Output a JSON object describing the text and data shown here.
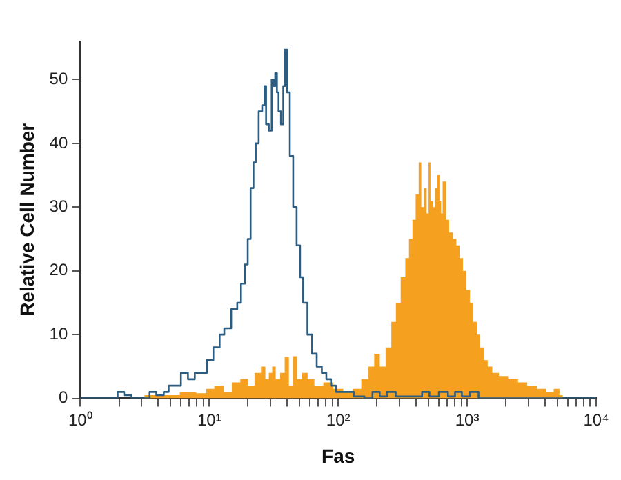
{
  "chart_data": {
    "type": "step",
    "xlabel": "Fas",
    "ylabel": "Relative Cell Number",
    "log": "x",
    "grid": false,
    "legend": false,
    "marker": "none",
    "line_style": "solid",
    "xlim": [
      1,
      10000
    ],
    "ylim": [
      0,
      56
    ],
    "yticks": [
      0,
      10,
      20,
      30,
      40,
      50
    ],
    "xticks": [
      {
        "value": 1,
        "label": "10⁰"
      },
      {
        "value": 2,
        "label": null
      },
      {
        "value": 3,
        "label": null
      },
      {
        "value": 4,
        "label": null
      },
      {
        "value": 5,
        "label": null
      },
      {
        "value": 6,
        "label": null
      },
      {
        "value": 7,
        "label": null
      },
      {
        "value": 8,
        "label": null
      },
      {
        "value": 9,
        "label": null
      },
      {
        "value": 10,
        "label": "10¹"
      },
      {
        "value": 20,
        "label": null
      },
      {
        "value": 30,
        "label": null
      },
      {
        "value": 40,
        "label": null
      },
      {
        "value": 50,
        "label": null
      },
      {
        "value": 60,
        "label": null
      },
      {
        "value": 70,
        "label": null
      },
      {
        "value": 80,
        "label": null
      },
      {
        "value": 90,
        "label": null
      },
      {
        "value": 100,
        "label": "10²"
      },
      {
        "value": 200,
        "label": null
      },
      {
        "value": 300,
        "label": null
      },
      {
        "value": 400,
        "label": null
      },
      {
        "value": 500,
        "label": null
      },
      {
        "value": 600,
        "label": null
      },
      {
        "value": 700,
        "label": null
      },
      {
        "value": 800,
        "label": null
      },
      {
        "value": 900,
        "label": null
      },
      {
        "value": 1000,
        "label": "10³"
      },
      {
        "value": 2000,
        "label": null
      },
      {
        "value": 3000,
        "label": null
      },
      {
        "value": 4000,
        "label": null
      },
      {
        "value": 5000,
        "label": null
      },
      {
        "value": 6000,
        "label": null
      },
      {
        "value": 7000,
        "label": null
      },
      {
        "value": 8000,
        "label": null
      },
      {
        "value": 9000,
        "label": null
      },
      {
        "value": 10000,
        "label": "10⁴"
      }
    ],
    "series": [
      {
        "type": "step",
        "color": "#2b5d83",
        "x": [
          1,
          1.9,
          2,
          2.4,
          2.6,
          3.3,
          3.6,
          4.2,
          4.7,
          5,
          5.6,
          6.5,
          7.2,
          8.3,
          9.2,
          10,
          11.6,
          12.5,
          13.7,
          16,
          17,
          18.3,
          19.5,
          20.3,
          21.6,
          22.5,
          23.4,
          25,
          26.5,
          27.2,
          28,
          30,
          31,
          32,
          33,
          34,
          35,
          37,
          38,
          39.4,
          40.8,
          43.6,
          46,
          49.3,
          52,
          55,
          60.6,
          65,
          71.5,
          78,
          84,
          92,
          100,
          130,
          135,
          150,
          170,
          200,
          220,
          260,
          300,
          400,
          500,
          520,
          700,
          720,
          900,
          920,
          1200,
          1250,
          10000
        ],
        "values": [
          0,
          0,
          1,
          0.5,
          0,
          0,
          1,
          0.5,
          1,
          2,
          2,
          4,
          3,
          4,
          4,
          6,
          8,
          10,
          11,
          14,
          15,
          18,
          21,
          25,
          33,
          37,
          40,
          45,
          46,
          49,
          43,
          42,
          50,
          49,
          51,
          48,
          45,
          43,
          49,
          54.7,
          48,
          38,
          30,
          24,
          19,
          15,
          10,
          7,
          5,
          4,
          3,
          2,
          1,
          1,
          0.3,
          0.3,
          0,
          1,
          0.3,
          1,
          0.3,
          0.3,
          1,
          0.3,
          1,
          0.3,
          1,
          0.3,
          1,
          0,
          0
        ]
      },
      {
        "type": "area",
        "color": "#f5a01f",
        "x": [
          3,
          3.3,
          5,
          7,
          9,
          10,
          12,
          14,
          16,
          19,
          21,
          24,
          26.5,
          28,
          30,
          31.6,
          34,
          37,
          40,
          43,
          46,
          50,
          55,
          61,
          70,
          84,
          100,
          120,
          139,
          164,
          180,
          201,
          220,
          247,
          270,
          291,
          320,
          343,
          365,
          388,
          410,
          432,
          450,
          476,
          495,
          509,
          530,
          552,
          575,
          600,
          620,
          636,
          655,
          674,
          700,
          751,
          800,
          848,
          900,
          956,
          1020,
          1085,
          1150,
          1228,
          1300,
          1387,
          1500,
          1636,
          1900,
          2275,
          2700,
          3162,
          3800,
          4400,
          5000,
          5400,
          5600,
          10000
        ],
        "values": [
          0,
          0.5,
          0.5,
          1,
          0.8,
          1.5,
          2,
          1,
          2.5,
          3,
          2,
          4,
          5,
          3,
          4,
          5,
          3,
          4,
          6.5,
          2,
          6.6,
          3,
          4,
          3,
          2,
          2.5,
          1.5,
          1,
          1.5,
          3,
          5,
          7,
          5,
          8,
          12,
          15,
          19,
          22,
          25,
          28,
          32,
          37,
          30,
          33,
          29,
          37,
          31,
          30,
          33,
          35,
          31,
          29,
          34,
          34,
          28,
          26,
          25,
          24,
          22,
          20,
          17,
          15,
          12,
          10,
          8,
          6,
          5,
          4,
          3.5,
          3,
          2.5,
          2,
          1.5,
          1,
          1.5,
          0.5,
          0,
          0
        ]
      }
    ]
  }
}
